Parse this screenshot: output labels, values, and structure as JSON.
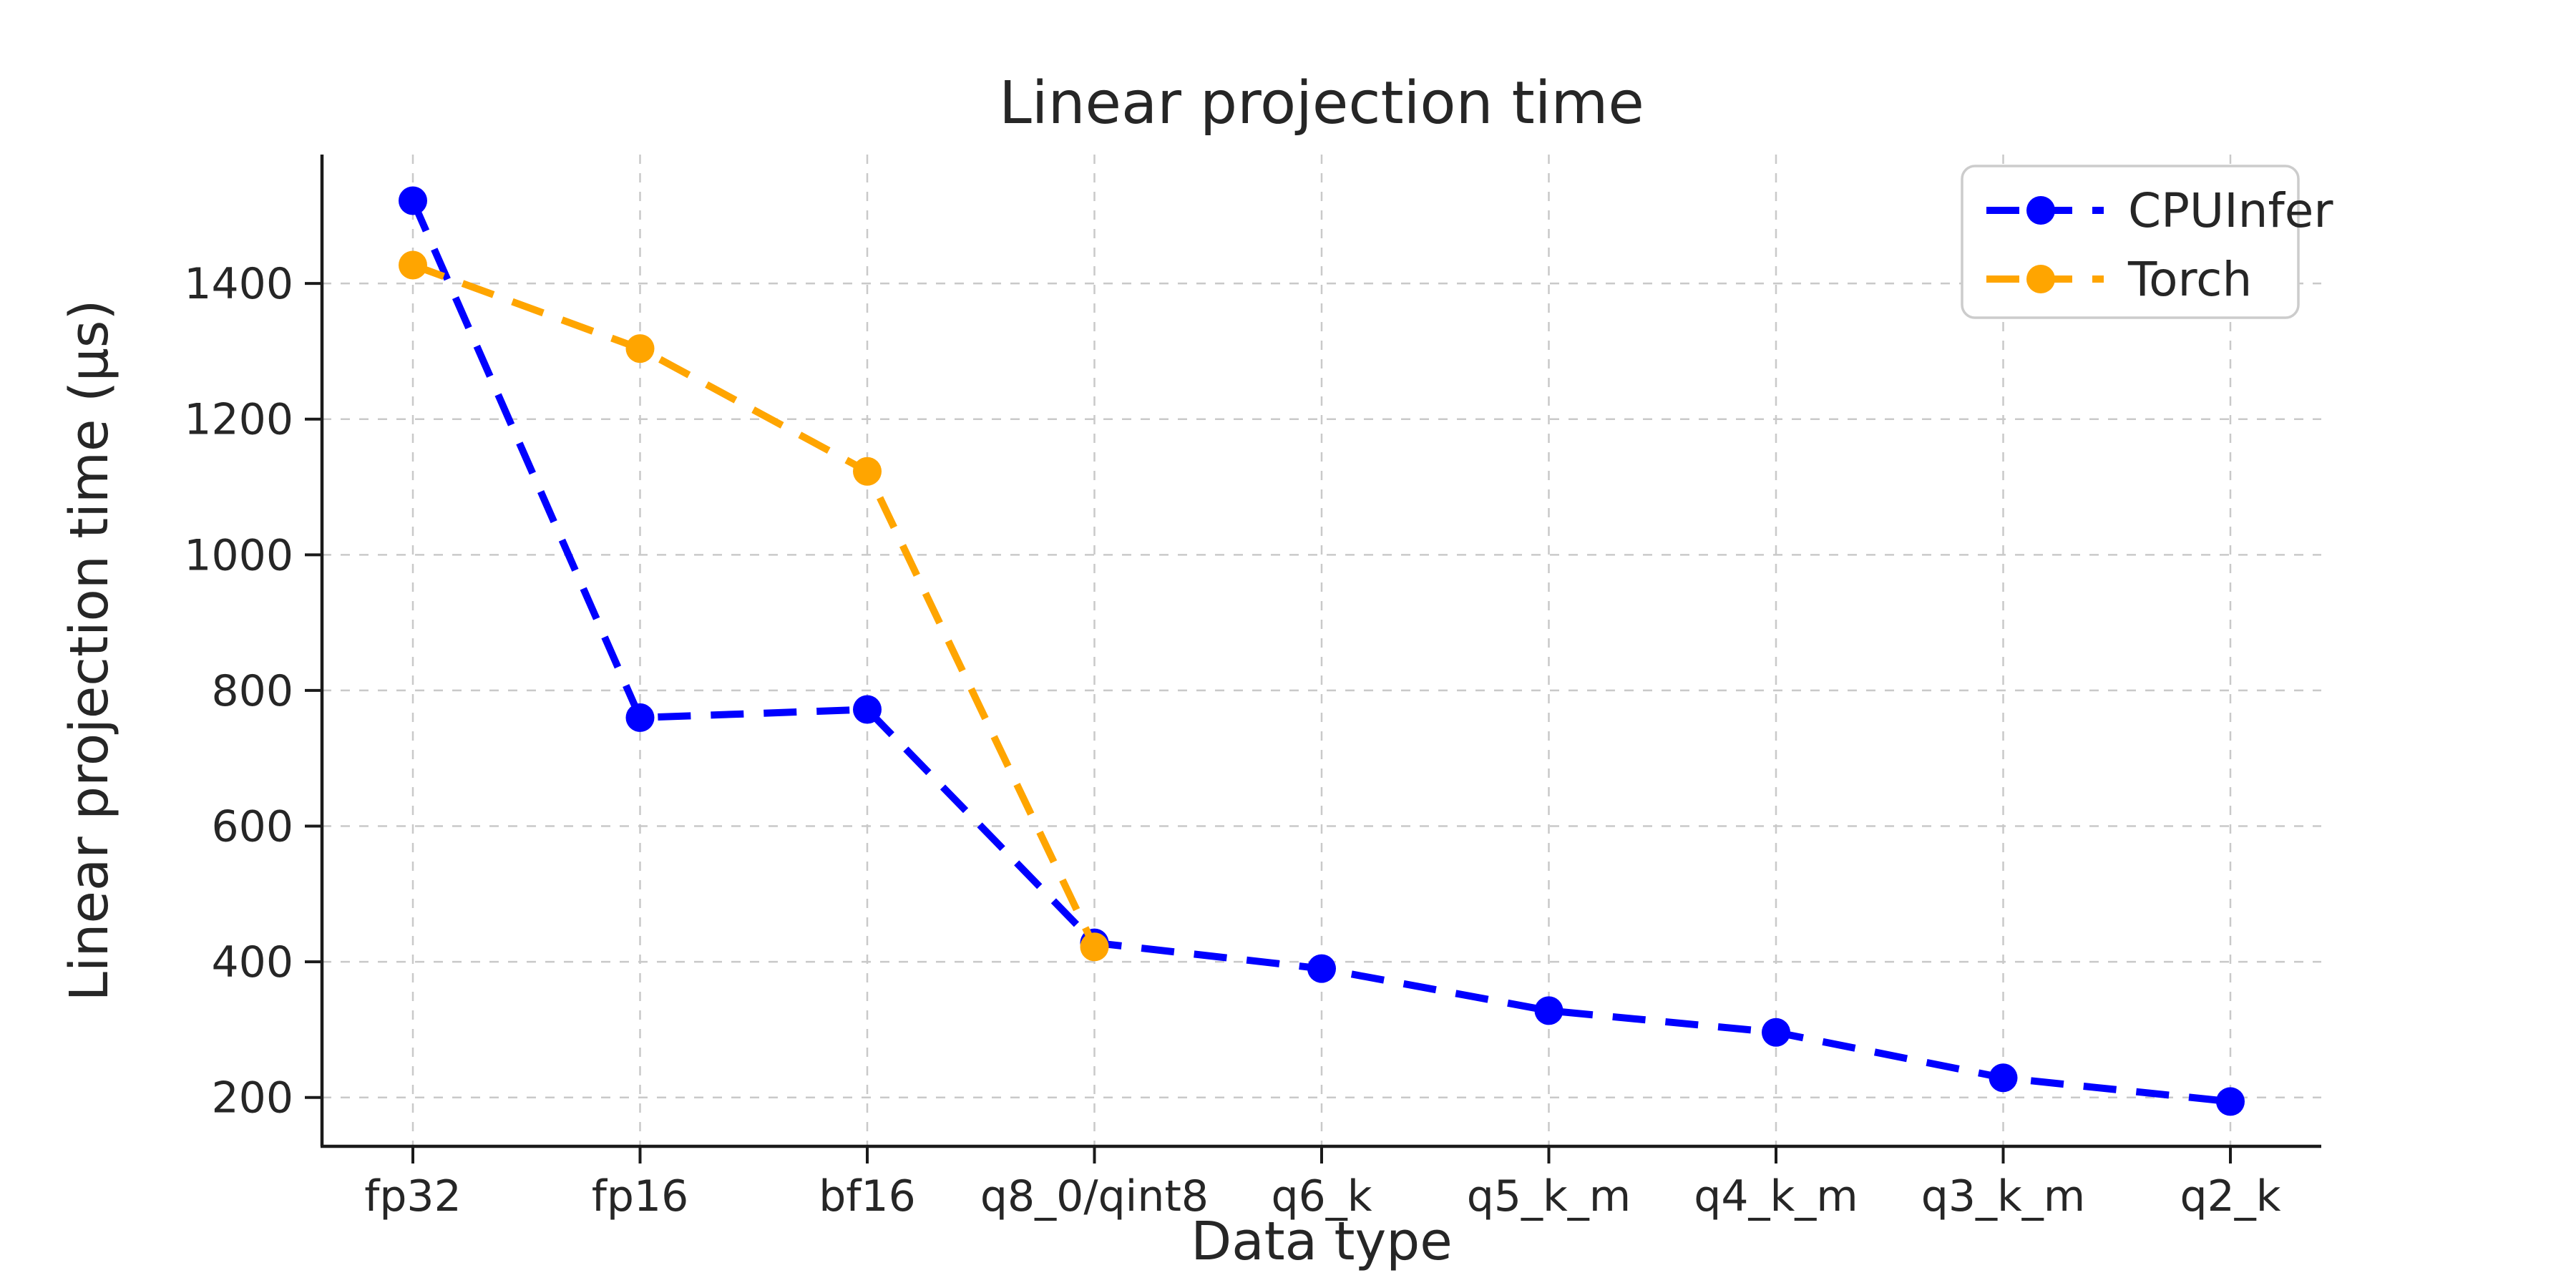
{
  "figure": {
    "background": "#ffffff"
  },
  "chart_data": {
    "type": "line",
    "title": "Linear projection time",
    "xlabel": "Data type",
    "ylabel": "Linear projection time (μs)",
    "categories": [
      "fp32",
      "fp16",
      "bf16",
      "q8_0/qint8",
      "q6_k",
      "q5_k_m",
      "q4_k_m",
      "q3_k_m",
      "q2_k"
    ],
    "series": [
      {
        "name": "CPUInfer",
        "color": "#0000ff",
        "values": [
          1522,
          760,
          772,
          428,
          390,
          328,
          296,
          229,
          194
        ]
      },
      {
        "name": "Torch",
        "color": "#ffa500",
        "values": [
          1427,
          1304,
          1123,
          422,
          null,
          null,
          null,
          null,
          null
        ]
      }
    ],
    "yticks": [
      200,
      400,
      600,
      800,
      1000,
      1200,
      1400
    ],
    "ylim": [
      128,
      1590
    ],
    "grid": true,
    "grid_style": "dashed",
    "line_style": "dashed",
    "marker": "circle",
    "legend_position": "upper right",
    "legend_entries": [
      "CPUInfer",
      "Torch"
    ]
  },
  "colors": {
    "grid": "#c9c9c9",
    "spine": "#1a1a1a",
    "text": "#262626",
    "legend_border": "#cccccc",
    "legend_background": "#ffffff",
    "series_cpuinfer": "#0000ff",
    "series_torch": "#ffa500"
  }
}
